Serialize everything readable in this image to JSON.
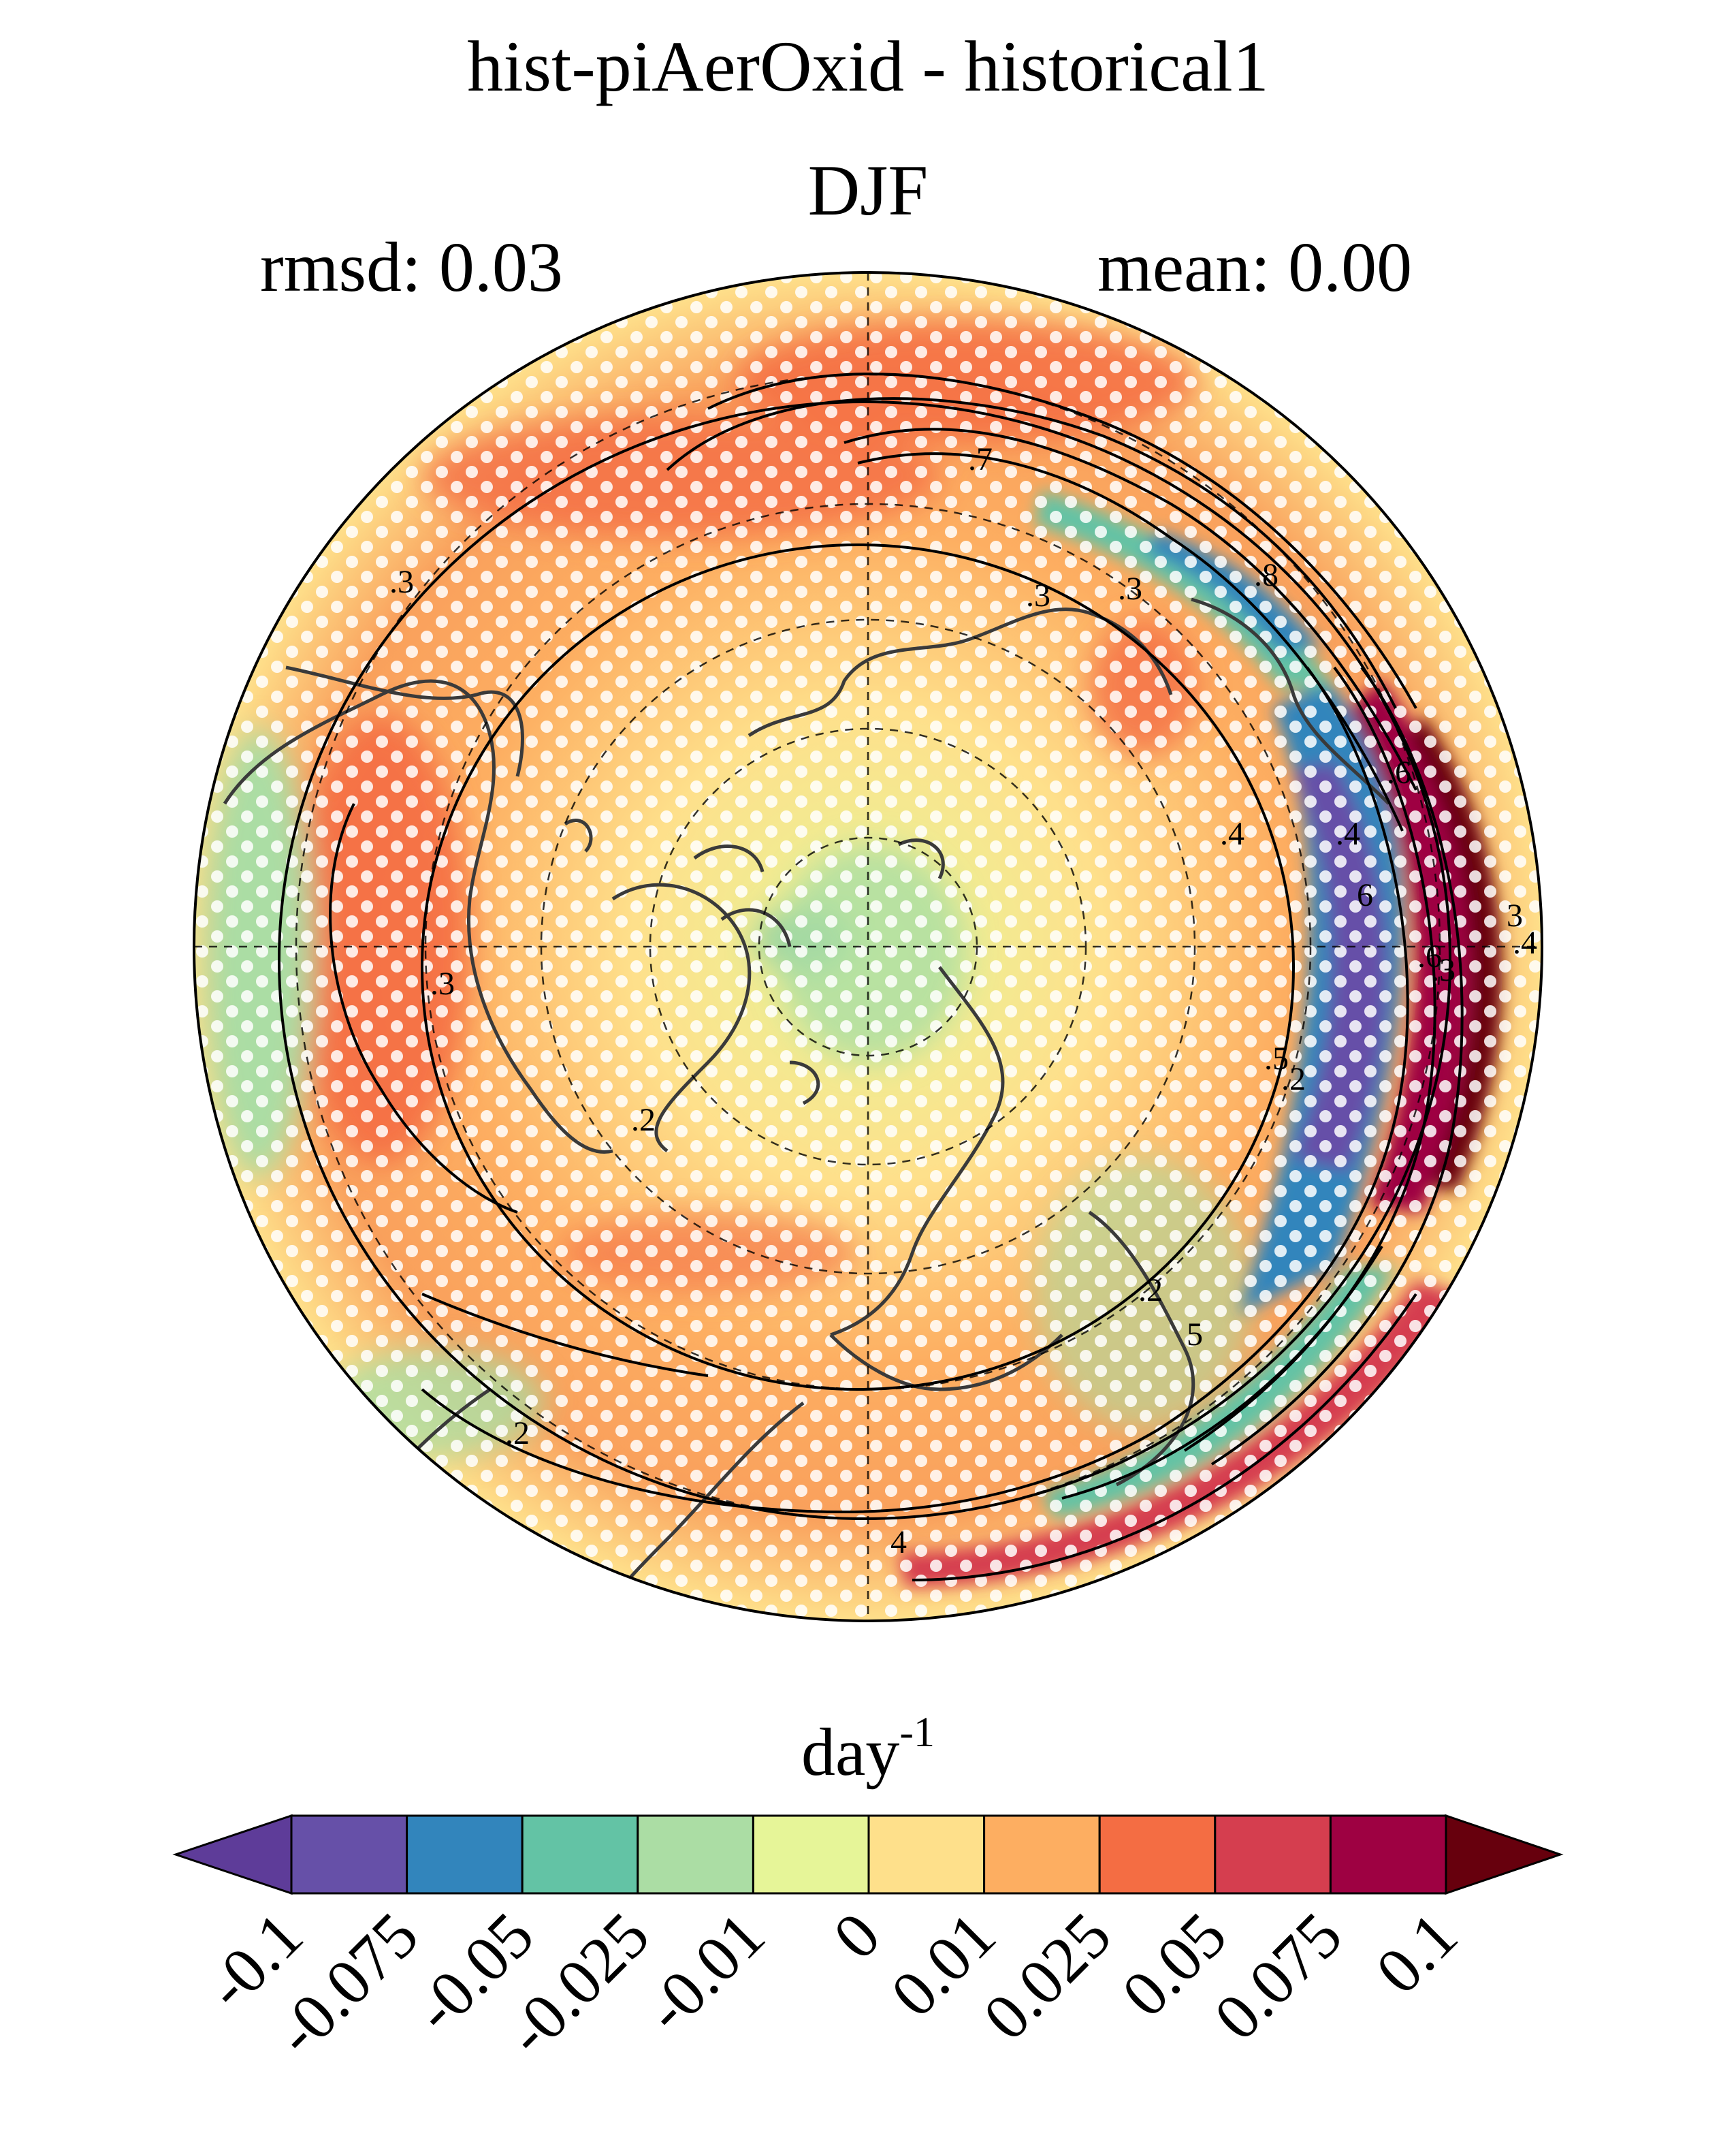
{
  "figure": {
    "title": "hist-piAerOxid - historical1",
    "subtitle": "DJF",
    "rmsd": "rmsd: 0.03",
    "mean": "mean: 0.00",
    "units": "day",
    "units_exponent": "-1"
  },
  "map": {
    "projection": "north polar stereographic",
    "field": "difference (shaded)",
    "contours": "climatology (black lines)",
    "stippling": "white dots",
    "contour_labels": [
      ".7",
      ".3",
      ".3",
      ".3",
      ".8",
      ".6",
      ".4",
      "6",
      ".4",
      ".6",
      "5",
      "3",
      ".2",
      ".5",
      ".3",
      "4",
      ".2",
      ".2",
      ".4",
      ".3",
      ".2"
    ],
    "colors": {
      "coast": "#3a3a3a",
      "contour": "#000000",
      "graticule": "#000000",
      "stipple": "#ffffff"
    }
  },
  "colorbar": {
    "tick_labels": [
      "-0.1",
      "-0.075",
      "-0.05",
      "-0.025",
      "-0.01",
      "0",
      "0.01",
      "0.025",
      "0.05",
      "0.075",
      "0.1"
    ],
    "colors": [
      "#5e3c99",
      "#6650a8",
      "#3285bc",
      "#63c3a5",
      "#abdda4",
      "#e6f598",
      "#fee08b",
      "#fdae61",
      "#f46d43",
      "#d53e4f",
      "#9e0142",
      "#67000d"
    ]
  }
}
